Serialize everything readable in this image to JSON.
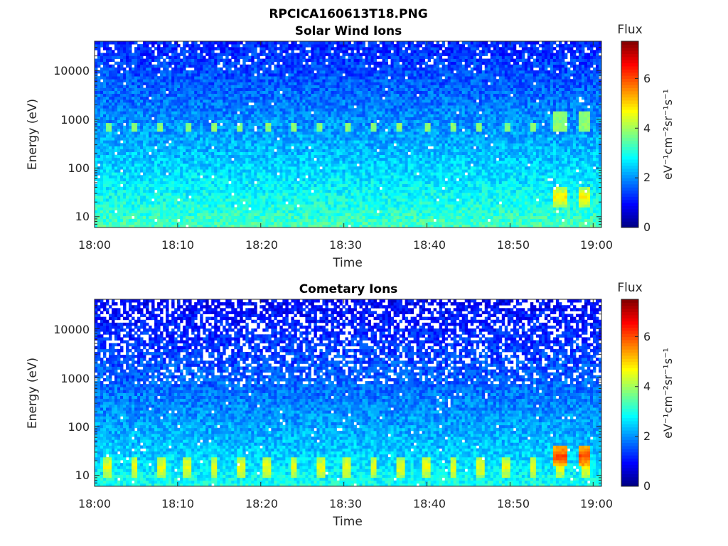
{
  "figure": {
    "filename": "RPCICA160613T18.PNG"
  },
  "panels": [
    {
      "title": "Solar Wind Ions",
      "xlabel": "Time",
      "ylabel": "Energy (eV)",
      "x_ticks": [
        "18:00",
        "18:10",
        "18:20",
        "18:30",
        "18:40",
        "18:50",
        "19:00"
      ],
      "y_ticks": [
        "10",
        "100",
        "1000",
        "10000"
      ],
      "colorbar": {
        "label": "Flux",
        "units": "eV⁻¹cm⁻²sr⁻¹s⁻¹",
        "ticks": [
          "0",
          "2",
          "4",
          "6"
        ]
      }
    },
    {
      "title": "Cometary Ions",
      "xlabel": "Time",
      "ylabel": "Energy (eV)",
      "x_ticks": [
        "18:00",
        "18:10",
        "18:20",
        "18:30",
        "18:40",
        "18:50",
        "19:00"
      ],
      "y_ticks": [
        "10",
        "100",
        "1000",
        "10000"
      ],
      "colorbar": {
        "label": "Flux",
        "units": "eV⁻¹cm⁻²sr⁻¹s⁻¹",
        "ticks": [
          "0",
          "2",
          "4",
          "6"
        ]
      }
    }
  ],
  "chart_data": [
    {
      "type": "heatmap",
      "title": "Solar Wind Ions",
      "xlabel": "Time",
      "ylabel": "Energy (eV)",
      "x_range": [
        "18:00",
        "19:01"
      ],
      "ylim": [
        6,
        40000
      ],
      "y_scale": "log",
      "colormap": "jet",
      "color_range": [
        0,
        7.5
      ],
      "colorbar_label": "Flux",
      "features": {
        "background_high_energy_flux": 1.2,
        "background_low_energy_flux": 3.4,
        "sweep_energy_eV": 650,
        "sweep_period_min": 3.2,
        "sweep_peak_flux": 3.8,
        "late_burst_times": [
          "18:56",
          "18:59"
        ],
        "late_burst_flux": 4.8
      }
    },
    {
      "type": "heatmap",
      "title": "Cometary Ions",
      "xlabel": "Time",
      "ylabel": "Energy (eV)",
      "x_range": [
        "18:00",
        "19:01"
      ],
      "ylim": [
        6,
        40000
      ],
      "y_scale": "log",
      "colormap": "jet",
      "color_range": [
        0,
        7.5
      ],
      "colorbar_label": "Flux",
      "features": {
        "background_high_energy_flux": 0.9,
        "background_low_energy_flux": 3.0,
        "low_energy_stripe_energy_eV": 15,
        "low_energy_stripe_period_min": 3.2,
        "stripe_peak_flux": 4.6,
        "late_burst_times": [
          "18:56",
          "18:59"
        ],
        "late_burst_flux": 6.0
      }
    }
  ]
}
